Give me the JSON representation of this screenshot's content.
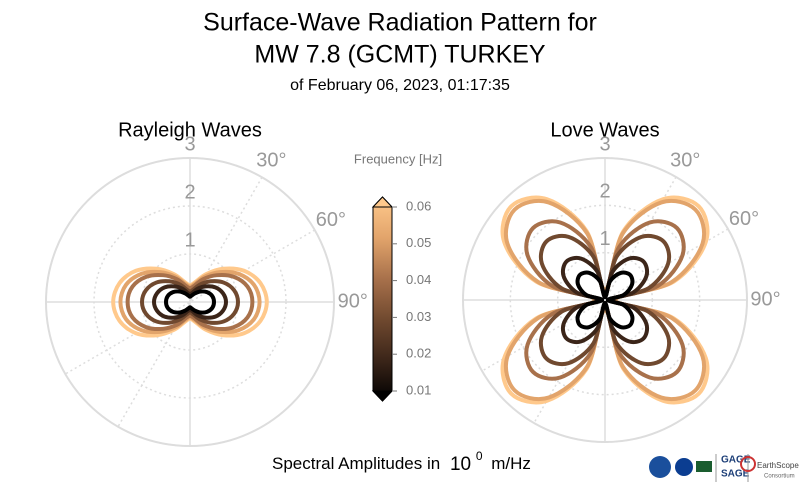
{
  "header": {
    "title_line1": "Surface-Wave Radiation Pattern for",
    "title_line2": "MW 7.8 (GCMT) TURKEY",
    "subtitle": "of February 06, 2023, 01:17:35"
  },
  "chart_data": [
    {
      "type": "polar",
      "title": "Rayleigh Waves",
      "theta": [
        0,
        15,
        30,
        45,
        60,
        75,
        90,
        105,
        120,
        135,
        150,
        165,
        180,
        195,
        210,
        225,
        240,
        255,
        270,
        285,
        300,
        315,
        330,
        345
      ],
      "rlim": [
        0,
        3
      ],
      "rticks": [
        1,
        2,
        3
      ],
      "thetaticks": [
        {
          "value": 30,
          "label": "30°"
        },
        {
          "value": 60,
          "label": "60°"
        },
        {
          "value": 90,
          "label": "90°"
        }
      ],
      "series": [
        {
          "color": "#000000",
          "values": [
            0.11,
            0.14,
            0.21,
            0.31,
            0.41,
            0.48,
            0.5,
            0.48,
            0.41,
            0.31,
            0.21,
            0.14,
            0.11,
            0.14,
            0.21,
            0.31,
            0.41,
            0.48,
            0.5,
            0.48,
            0.41,
            0.31,
            0.21,
            0.14
          ]
        },
        {
          "color": "#3b2519",
          "values": [
            0.17,
            0.2,
            0.32,
            0.46,
            0.61,
            0.71,
            0.75,
            0.71,
            0.61,
            0.46,
            0.32,
            0.2,
            0.17,
            0.2,
            0.32,
            0.46,
            0.61,
            0.71,
            0.75,
            0.71,
            0.61,
            0.46,
            0.32,
            0.2
          ]
        },
        {
          "color": "#70492f",
          "values": [
            0.22,
            0.27,
            0.42,
            0.61,
            0.81,
            0.95,
            1,
            0.95,
            0.81,
            0.61,
            0.42,
            0.27,
            0.22,
            0.27,
            0.42,
            0.61,
            0.81,
            0.95,
            1,
            0.95,
            0.81,
            0.61,
            0.42,
            0.27
          ]
        },
        {
          "color": "#a8714b",
          "values": [
            0.29,
            0.35,
            0.55,
            0.79,
            1.05,
            1.24,
            1.3,
            1.24,
            1.05,
            0.79,
            0.55,
            0.35,
            0.29,
            0.35,
            0.55,
            0.79,
            1.05,
            1.24,
            1.3,
            1.24,
            1.05,
            0.79,
            0.55,
            0.35
          ]
        },
        {
          "color": "#e2a46b",
          "values": [
            0.32,
            0.39,
            0.61,
            0.88,
            1.17,
            1.38,
            1.45,
            1.38,
            1.17,
            0.88,
            0.61,
            0.39,
            0.32,
            0.39,
            0.61,
            0.88,
            1.17,
            1.38,
            1.45,
            1.38,
            1.17,
            0.88,
            0.61,
            0.39
          ]
        },
        {
          "color": "#ffc98c",
          "values": [
            0.35,
            0.43,
            0.67,
            0.98,
            1.3,
            1.52,
            1.6,
            1.52,
            1.3,
            0.98,
            0.67,
            0.43,
            0.35,
            0.43,
            0.67,
            0.98,
            1.3,
            1.52,
            1.6,
            1.52,
            1.3,
            0.98,
            0.67,
            0.43
          ]
        }
      ]
    },
    {
      "type": "polar",
      "title": "Love Waves",
      "theta": [
        0,
        15,
        30,
        45,
        60,
        75,
        90,
        105,
        120,
        135,
        150,
        165,
        180,
        195,
        210,
        225,
        240,
        255,
        270,
        285,
        300,
        315,
        330,
        345
      ],
      "rlim": [
        0,
        3
      ],
      "rticks": [
        1,
        2,
        3
      ],
      "thetaticks": [
        {
          "value": 30,
          "label": "30°"
        },
        {
          "value": 60,
          "label": "60°"
        },
        {
          "value": 90,
          "label": "90°"
        }
      ],
      "series": [
        {
          "color": "#000000",
          "values": [
            0.06,
            0.41,
            0.66,
            0.75,
            0.66,
            0.41,
            0.06,
            0.41,
            0.66,
            0.75,
            0.66,
            0.41,
            0.06,
            0.41,
            0.66,
            0.75,
            0.66,
            0.41,
            0.06,
            0.41,
            0.66,
            0.75,
            0.66,
            0.41
          ]
        },
        {
          "color": "#3b2519",
          "values": [
            0.09,
            0.62,
            1.01,
            1.15,
            1.01,
            0.62,
            0.09,
            0.62,
            1.01,
            1.15,
            1.01,
            0.62,
            0.09,
            0.62,
            1.01,
            1.15,
            1.01,
            0.62,
            0.09,
            0.62,
            1.01,
            1.15,
            1.01,
            0.62
          ]
        },
        {
          "color": "#70492f",
          "values": [
            0.14,
            0.95,
            1.54,
            1.75,
            1.54,
            0.95,
            0.14,
            0.95,
            1.54,
            1.75,
            1.54,
            0.95,
            0.14,
            0.95,
            1.54,
            1.75,
            1.54,
            0.95,
            0.14,
            0.95,
            1.54,
            1.75,
            1.54,
            0.95
          ]
        },
        {
          "color": "#a8714b",
          "values": [
            0.17,
            1.16,
            1.89,
            2.15,
            1.89,
            1.16,
            0.17,
            1.16,
            1.89,
            2.15,
            1.89,
            1.16,
            0.17,
            1.16,
            1.89,
            2.15,
            1.89,
            1.16,
            0.17,
            1.16,
            1.89,
            2.15,
            1.89,
            1.16
          ]
        },
        {
          "color": "#e2a46b",
          "values": [
            0.22,
            1.46,
            2.38,
            2.7,
            2.38,
            1.46,
            0.22,
            1.46,
            2.38,
            2.7,
            2.38,
            1.46,
            0.22,
            1.46,
            2.38,
            2.7,
            2.38,
            1.46,
            0.22,
            1.46,
            2.38,
            2.7,
            2.38,
            1.46
          ]
        },
        {
          "color": "#ffc98c",
          "values": [
            0.22,
            1.51,
            2.46,
            2.8,
            2.46,
            1.51,
            0.22,
            1.51,
            2.46,
            2.8,
            2.46,
            1.51,
            0.22,
            1.51,
            2.46,
            2.8,
            2.46,
            1.51,
            0.22,
            1.51,
            2.46,
            2.8,
            2.46,
            1.51
          ]
        }
      ]
    }
  ],
  "colorbar": {
    "label": "Frequency [Hz]",
    "lim": [
      0.01,
      0.06
    ],
    "ticks": [
      0.01,
      0.02,
      0.03,
      0.04,
      0.05,
      0.06
    ],
    "colors": [
      "#000000",
      "#3b2519",
      "#70492f",
      "#a8714b",
      "#e2a46b",
      "#ffc98c"
    ]
  },
  "footer": {
    "text": "Spectral Amplitudes in",
    "base": "10",
    "exponent": "0",
    "unit": "m/Hz"
  },
  "logos": {
    "gage": "GAGE",
    "sage": "SAGE",
    "earthscope": "EarthScope",
    "consortium": "Consortium"
  }
}
